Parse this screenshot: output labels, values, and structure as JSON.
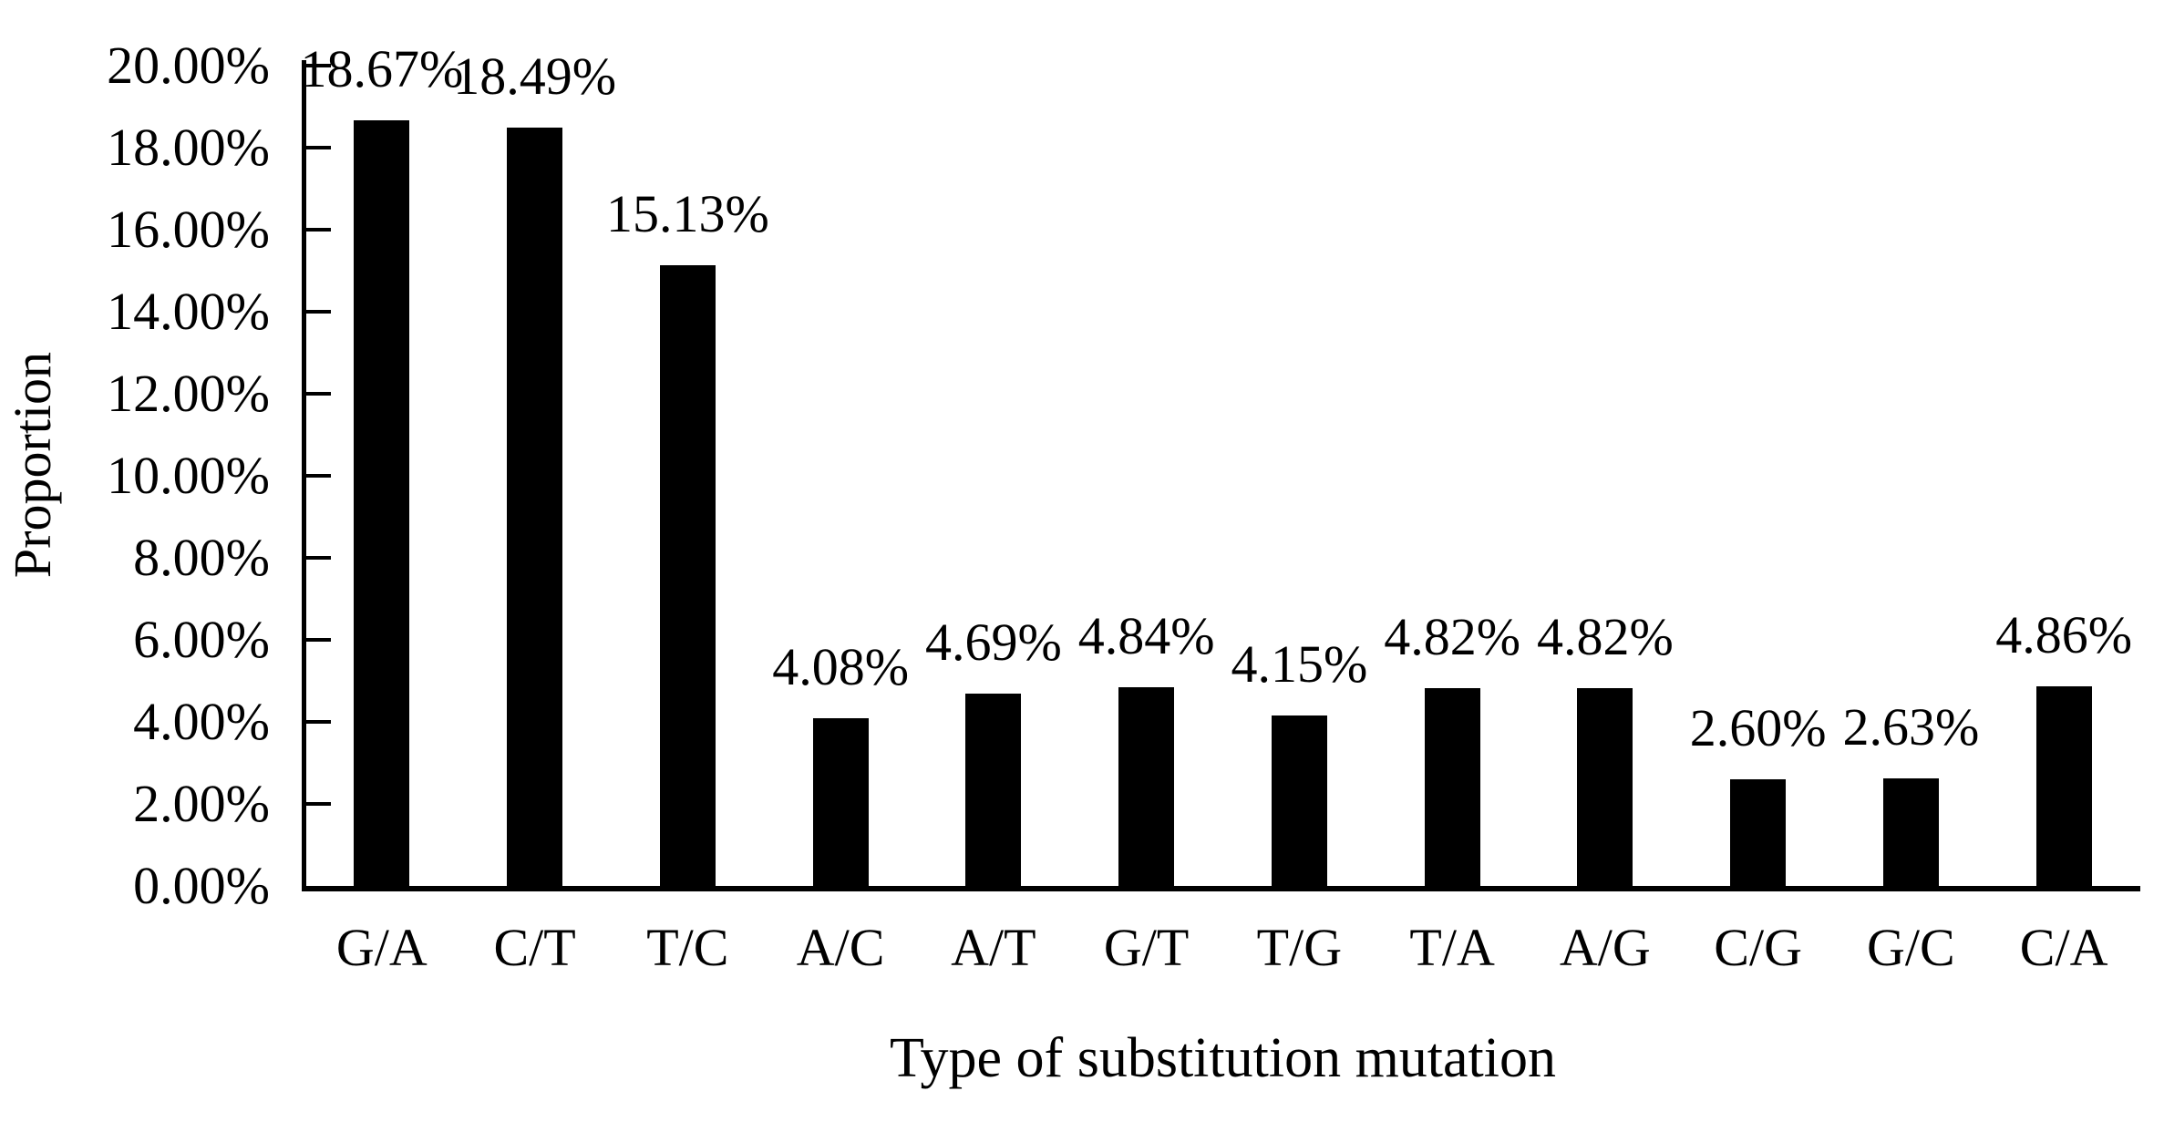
{
  "figure": {
    "background": "#ffffff",
    "text_color": "#000000"
  },
  "chart_data": {
    "type": "bar",
    "title": "",
    "categories": [
      "G/A",
      "C/T",
      "T/C",
      "A/C",
      "A/T",
      "G/T",
      "T/G",
      "T/A",
      "A/G",
      "C/G",
      "G/C",
      "C/A"
    ],
    "values": [
      18.67,
      18.49,
      15.13,
      4.08,
      4.69,
      4.84,
      4.15,
      4.82,
      4.82,
      2.6,
      2.63,
      4.86
    ],
    "value_labels": [
      "18.67%",
      "18.49%",
      "15.13%",
      "4.08%",
      "4.69%",
      "4.84%",
      "4.15%",
      "4.82%",
      "4.82%",
      "2.60%",
      "2.63%",
      "4.86%"
    ],
    "xlabel": "Type of substitution mutation",
    "ylabel": "Proportion",
    "ylim": [
      0,
      20
    ],
    "yticks": {
      "values": [
        0,
        2,
        4,
        6,
        8,
        10,
        12,
        14,
        16,
        18,
        20
      ],
      "labels": [
        "0.00%",
        "2.00%",
        "4.00%",
        "6.00%",
        "8.00%",
        "10.00%",
        "12.00%",
        "14.00%",
        "16.00%",
        "18.00%",
        "20.00%"
      ]
    },
    "bar_color": "#000000",
    "grid": false,
    "legend": null,
    "data_label_position": "above-bar",
    "tick_direction": "inside"
  }
}
